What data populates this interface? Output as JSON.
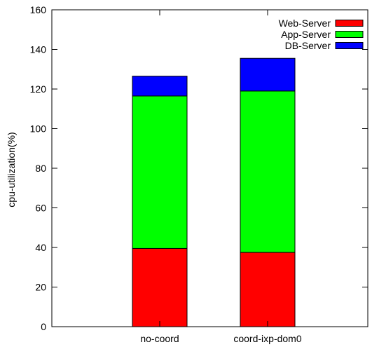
{
  "chart_data": {
    "type": "bar",
    "stacked": true,
    "categories": [
      "no-coord",
      "coord-ixp-dom0"
    ],
    "series": [
      {
        "name": "Web-Server",
        "values": [
          39.5,
          37.5
        ],
        "color": "#ff0000"
      },
      {
        "name": "App-Server",
        "values": [
          77.0,
          81.5
        ],
        "color": "#00ff00"
      },
      {
        "name": "DB-Server",
        "values": [
          10.0,
          16.5
        ],
        "color": "#0000ff"
      }
    ],
    "ylabel": "cpu-utilization(%)",
    "xlabel": "",
    "ylim": [
      0,
      160
    ],
    "yticks": [
      0,
      20,
      40,
      60,
      80,
      100,
      120,
      140,
      160
    ],
    "legend_position": "top-right",
    "grid": false
  }
}
